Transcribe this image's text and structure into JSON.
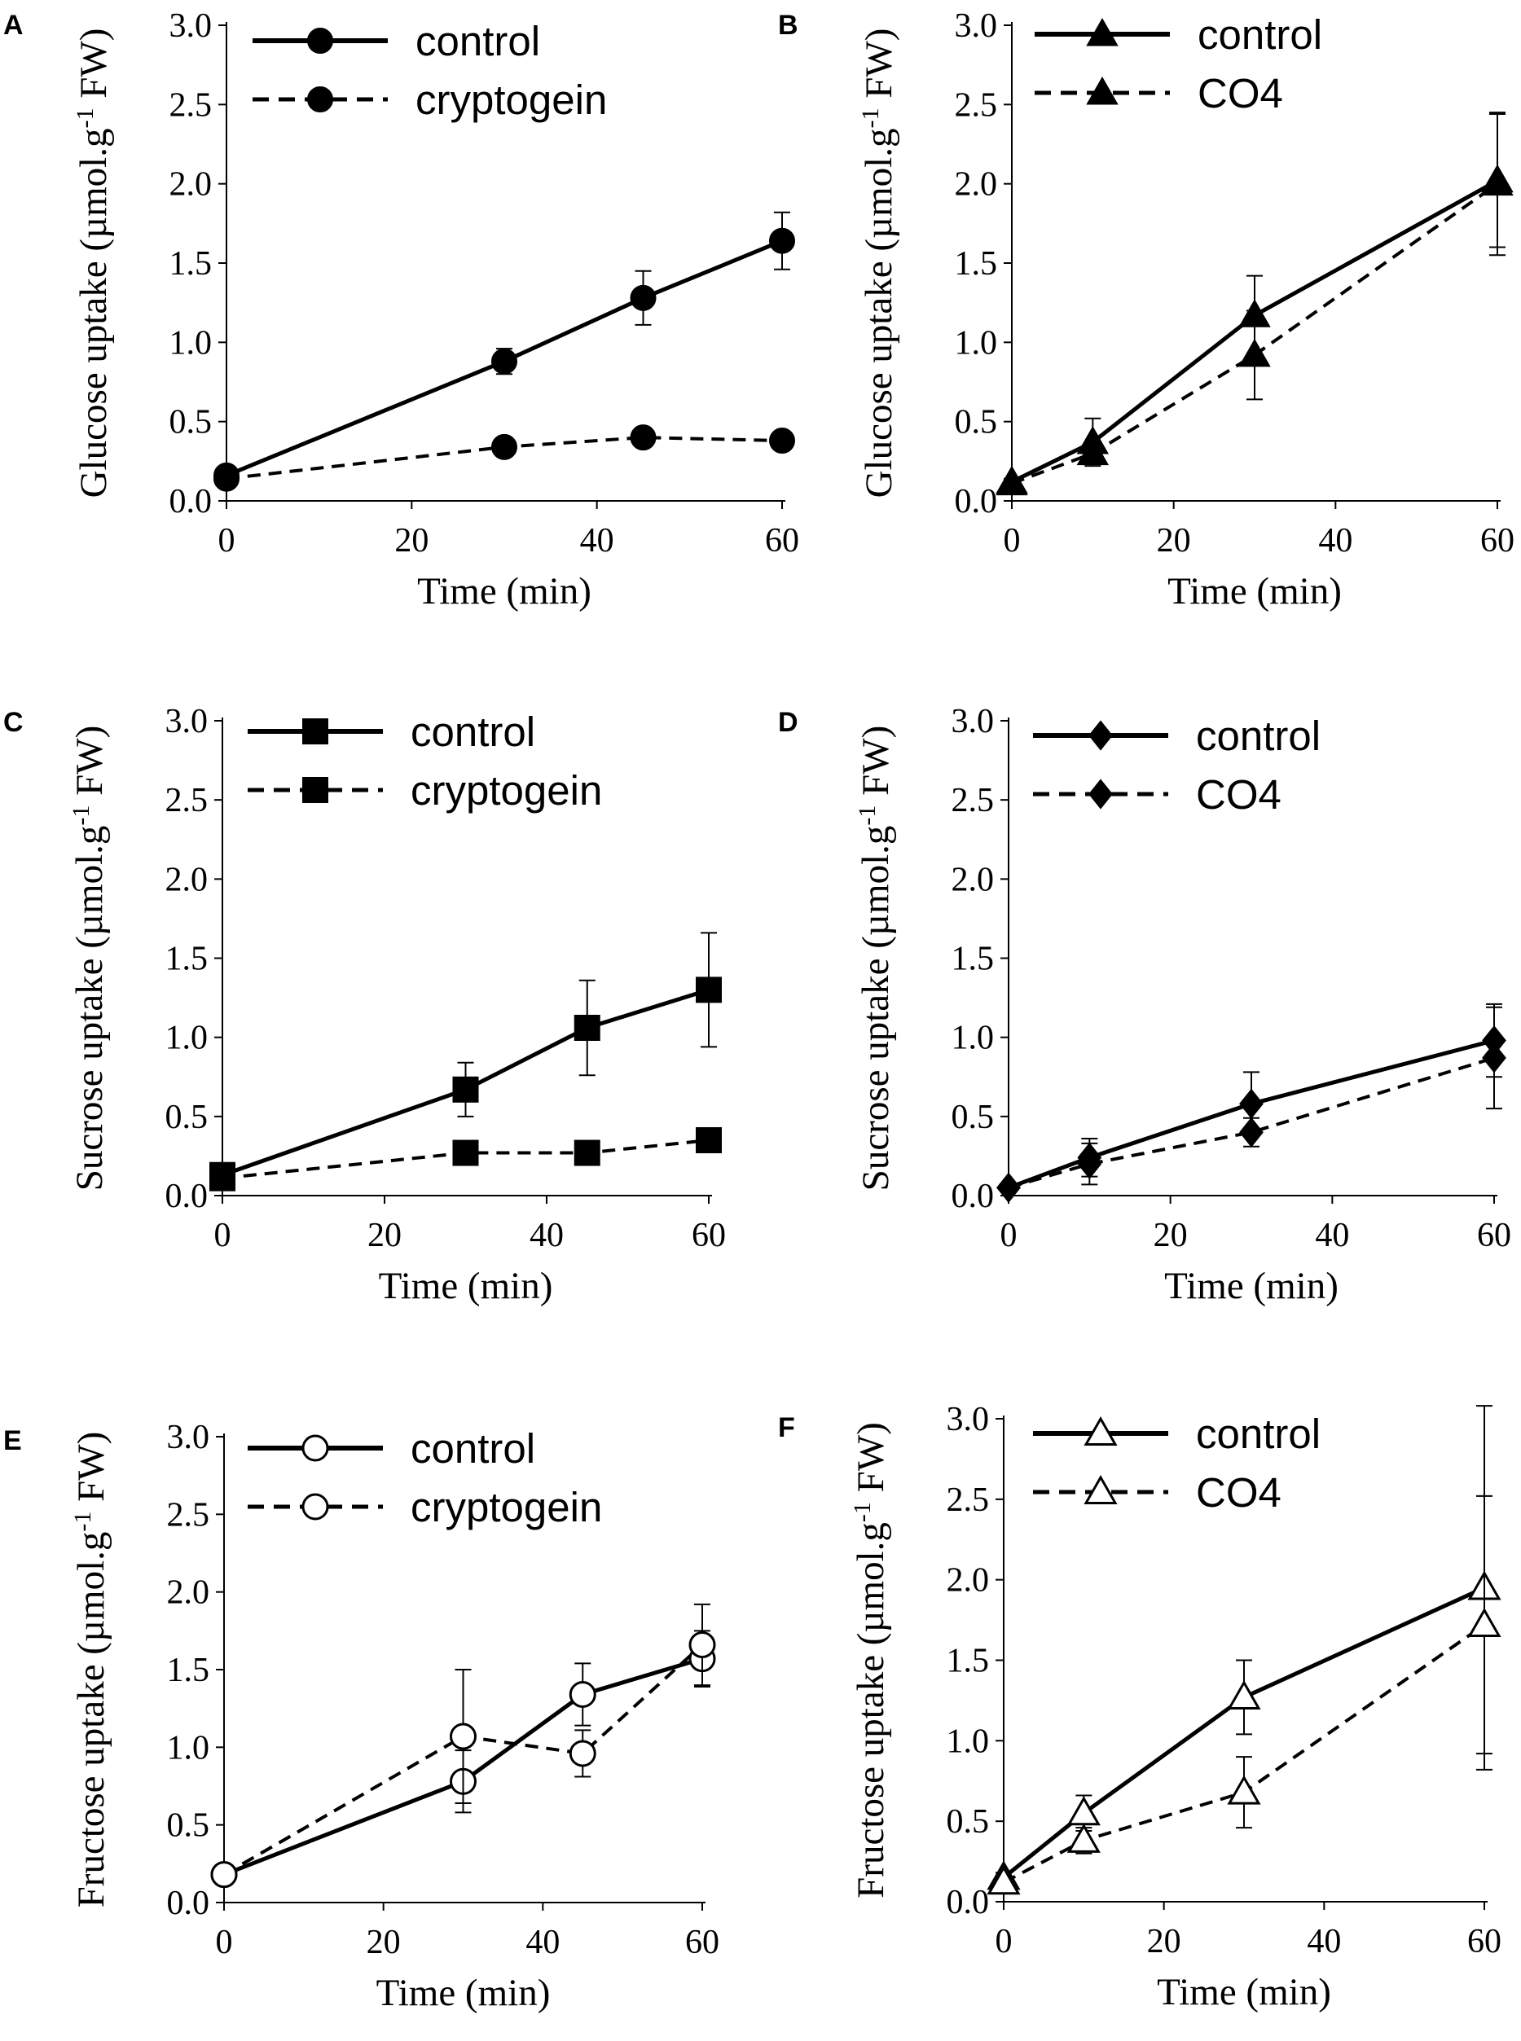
{
  "chart_data": [
    {
      "panel": "A",
      "type": "line",
      "xlabel": "Time (min)",
      "ylabel_main": "Glucose uptake",
      "ylabel_unit": "(µmol.g",
      "ylabel_sup": "-1",
      "ylabel_unit_end": " FW)",
      "xlim": [
        0,
        60
      ],
      "ylim": [
        0,
        3.0
      ],
      "xticks": [
        "0",
        "20",
        "40",
        "60"
      ],
      "yticks": [
        "0.0",
        "0.5",
        "1.0",
        "1.5",
        "2.0",
        "2.5",
        "3.0"
      ],
      "marker": "circle",
      "filled": true,
      "series": [
        {
          "name": "control",
          "dash": false,
          "x": [
            0,
            30,
            45,
            60
          ],
          "y": [
            0.16,
            0.88,
            1.28,
            1.64
          ],
          "err": [
            0.05,
            0.08,
            0.17,
            0.18
          ]
        },
        {
          "name": "cryptogein",
          "dash": true,
          "x": [
            0,
            30,
            45,
            60
          ],
          "y": [
            0.14,
            0.34,
            0.4,
            0.38
          ],
          "err": [
            0.03,
            0.05,
            0.06,
            0.04
          ]
        }
      ]
    },
    {
      "panel": "B",
      "type": "line",
      "xlabel": "Time (min)",
      "ylabel_main": "Glucose uptake",
      "ylabel_unit": "(µmol.g",
      "ylabel_sup": "-1",
      "ylabel_unit_end": " FW)",
      "xlim": [
        0,
        60
      ],
      "ylim": [
        0,
        3.0
      ],
      "xticks": [
        "0",
        "20",
        "40",
        "60"
      ],
      "yticks": [
        "0.0",
        "0.5",
        "1.0",
        "1.5",
        "2.0",
        "2.5",
        "3.0"
      ],
      "marker": "triangle",
      "filled": true,
      "series": [
        {
          "name": "control",
          "dash": false,
          "x": [
            0,
            10,
            30,
            60
          ],
          "y": [
            0.12,
            0.37,
            1.17,
            2.02
          ],
          "err": [
            0.02,
            0.15,
            0.25,
            0.42
          ]
        },
        {
          "name": "CO4",
          "dash": true,
          "x": [
            0,
            10,
            30,
            60
          ],
          "y": [
            0.11,
            0.3,
            0.92,
            2.0
          ],
          "err": [
            0.02,
            0.06,
            0.28,
            0.45
          ]
        }
      ]
    },
    {
      "panel": "C",
      "type": "line",
      "xlabel": "Time (min)",
      "ylabel_main": "Sucrose uptake",
      "ylabel_unit": "(µmol.g",
      "ylabel_sup": "-1",
      "ylabel_unit_end": " FW)",
      "xlim": [
        0,
        60
      ],
      "ylim": [
        0,
        3.0
      ],
      "xticks": [
        "0",
        "20",
        "40",
        "60"
      ],
      "yticks": [
        "0.0",
        "0.5",
        "1.0",
        "1.5",
        "2.0",
        "2.5",
        "3.0"
      ],
      "marker": "square",
      "filled": true,
      "series": [
        {
          "name": "control",
          "dash": false,
          "x": [
            0,
            30,
            45,
            60
          ],
          "y": [
            0.13,
            0.67,
            1.06,
            1.3
          ],
          "err": [
            0.03,
            0.17,
            0.3,
            0.36
          ]
        },
        {
          "name": "cryptogein",
          "dash": true,
          "x": [
            0,
            30,
            45,
            60
          ],
          "y": [
            0.11,
            0.27,
            0.27,
            0.35
          ],
          "err": [
            0.02,
            0.04,
            0.04,
            0.04
          ]
        }
      ]
    },
    {
      "panel": "D",
      "type": "line",
      "xlabel": "Time (min)",
      "ylabel_main": "Sucrose uptake",
      "ylabel_unit": "(µmol.g",
      "ylabel_sup": "-1",
      "ylabel_unit_end": " FW)",
      "xlim": [
        0,
        60
      ],
      "ylim": [
        0,
        3.0
      ],
      "xticks": [
        "0",
        "20",
        "40",
        "60"
      ],
      "yticks": [
        "0.0",
        "0.5",
        "1.0",
        "1.5",
        "2.0",
        "2.5",
        "3.0"
      ],
      "marker": "diamond",
      "filled": true,
      "series": [
        {
          "name": "control",
          "dash": false,
          "x": [
            0,
            10,
            30,
            60
          ],
          "y": [
            0.05,
            0.24,
            0.58,
            0.98
          ],
          "err": [
            0.02,
            0.12,
            0.2,
            0.23
          ]
        },
        {
          "name": "CO4",
          "dash": true,
          "x": [
            0,
            10,
            30,
            60
          ],
          "y": [
            0.05,
            0.2,
            0.4,
            0.87
          ],
          "err": [
            0.02,
            0.13,
            0.09,
            0.32
          ]
        }
      ]
    },
    {
      "panel": "E",
      "type": "line",
      "xlabel": "Time (min)",
      "ylabel_main": "Fructose uptake",
      "ylabel_unit": "(µmol.g",
      "ylabel_sup": "-1",
      "ylabel_unit_end": " FW)",
      "xlim": [
        0,
        60
      ],
      "ylim": [
        0,
        3.0
      ],
      "xticks": [
        "0",
        "20",
        "40",
        "60"
      ],
      "yticks": [
        "0.0",
        "0.5",
        "1.0",
        "1.5",
        "2.0",
        "2.5",
        "3.0"
      ],
      "marker": "circle",
      "filled": false,
      "series": [
        {
          "name": "control",
          "dash": false,
          "x": [
            0,
            30,
            45,
            60
          ],
          "y": [
            0.18,
            0.78,
            1.34,
            1.57
          ],
          "err": [
            0.03,
            0.2,
            0.2,
            0.18
          ]
        },
        {
          "name": "cryptogein",
          "dash": true,
          "x": [
            0,
            30,
            45,
            60
          ],
          "y": [
            0.18,
            1.07,
            0.96,
            1.66
          ],
          "err": [
            0.03,
            0.43,
            0.15,
            0.26
          ]
        }
      ]
    },
    {
      "panel": "F",
      "type": "line",
      "xlabel": "Time (min)",
      "ylabel_main": "Fructose uptake",
      "ylabel_unit": "(µmol.g",
      "ylabel_sup": "-1",
      "ylabel_unit_end": " FW)",
      "xlim": [
        0,
        60
      ],
      "ylim": [
        0,
        3.0
      ],
      "xticks": [
        "0",
        "20",
        "40",
        "60"
      ],
      "yticks": [
        "0.0",
        "0.5",
        "1.0",
        "1.5",
        "2.0",
        "2.5",
        "3.0"
      ],
      "marker": "triangle",
      "filled": false,
      "series": [
        {
          "name": "control",
          "dash": false,
          "x": [
            0,
            10,
            30,
            60
          ],
          "y": [
            0.15,
            0.55,
            1.27,
            1.95
          ],
          "err": [
            0.03,
            0.11,
            0.23,
            1.13
          ]
        },
        {
          "name": "CO4",
          "dash": true,
          "x": [
            0,
            10,
            30,
            60
          ],
          "y": [
            0.12,
            0.38,
            0.68,
            1.72
          ],
          "err": [
            0.03,
            0.08,
            0.22,
            0.8
          ]
        }
      ]
    }
  ]
}
